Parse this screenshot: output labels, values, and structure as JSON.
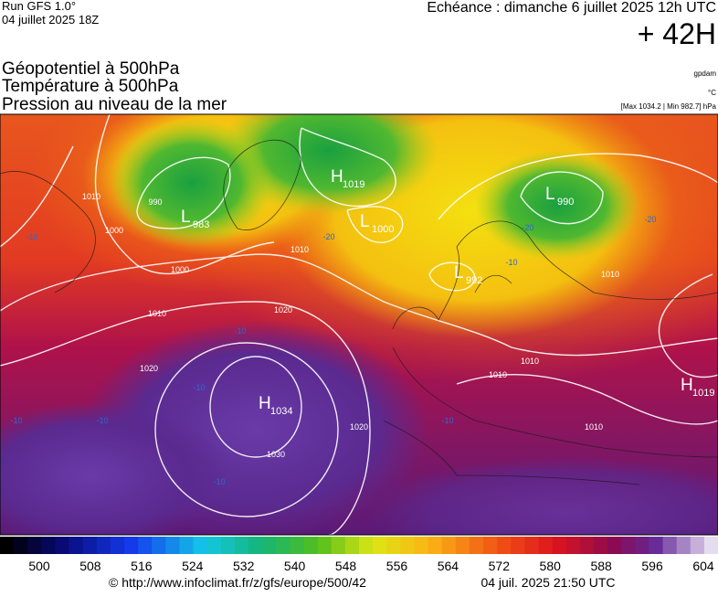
{
  "header": {
    "run": "Run GFS 1.0°",
    "run_date": "04 juillet 2025 18Z",
    "echeance": "Echéance : dimanche 6 juillet 2025 12h UTC",
    "lead": "+ 42H"
  },
  "titles": [
    "Géopotentiel à 500hPa",
    "Température à 500hPa",
    "Pression au niveau de la mer"
  ],
  "units": {
    "geopotential": "gpdam",
    "temperature": "°C",
    "range": "[Max 1034.2 | Min 982.7] hPa"
  },
  "pressure_centers": [
    {
      "symbol": "H",
      "value": "1034"
    },
    {
      "symbol": "L",
      "value": "983"
    },
    {
      "symbol": "H",
      "value": "1019"
    },
    {
      "symbol": "L",
      "value": "1000"
    },
    {
      "symbol": "L",
      "value": "990"
    },
    {
      "symbol": "L",
      "value": "992"
    },
    {
      "symbol": "H",
      "value": "1019"
    }
  ],
  "isobar_labels": [
    "1020",
    "1020",
    "1030",
    "1020",
    "1010",
    "1000",
    "1010",
    "1010",
    "1010",
    "1010",
    "1010",
    "1000",
    "1010",
    "990"
  ],
  "temperature_labels": [
    "-10",
    "-10",
    "-10",
    "-10",
    "-10",
    "-10",
    "-20",
    "-20",
    "-20",
    "-10",
    "-10"
  ],
  "colorbar": {
    "labels": [
      "500",
      "508",
      "516",
      "524",
      "532",
      "540",
      "548",
      "556",
      "564",
      "572",
      "580",
      "588",
      "596",
      "604"
    ]
  },
  "footer": {
    "url": "© http://www.infoclimat.fr/z/gfs/europe/500/42",
    "timestamp": "04 juil. 2025 21:50 UTC"
  }
}
